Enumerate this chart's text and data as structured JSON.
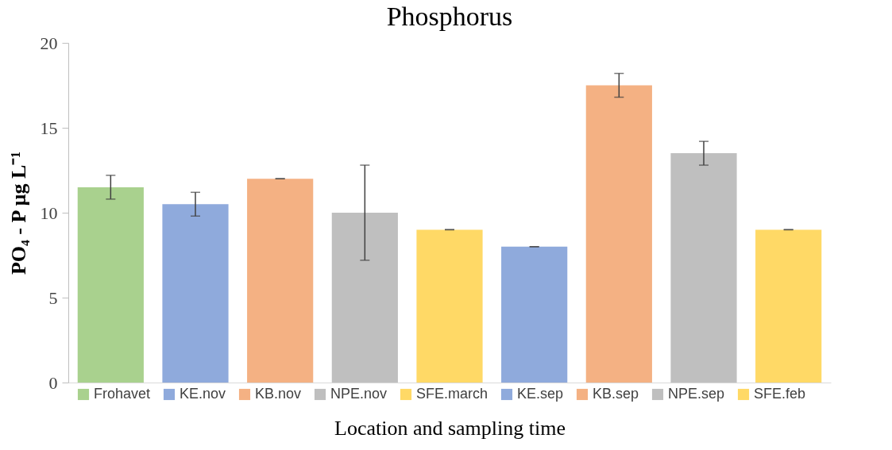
{
  "chart_data": {
    "type": "bar",
    "title": "Phosphorus",
    "xlabel": "Location and sampling time",
    "ylabel": "PO₄ - P µg L⁻¹",
    "categories": [
      null,
      null,
      null,
      null,
      null,
      null,
      null,
      null,
      null
    ],
    "stacked": true,
    "series": [
      {
        "name": "Frohavet",
        "color": "#a9d18e",
        "values": [
          11.5,
          null,
          null,
          null,
          null,
          null,
          null,
          null,
          null
        ],
        "errors": [
          0.7,
          null,
          null,
          null,
          null,
          null,
          null,
          null,
          null
        ]
      },
      {
        "name": "KE.nov",
        "color": "#8faadc",
        "values": [
          null,
          10.5,
          null,
          null,
          null,
          null,
          null,
          null,
          null
        ],
        "errors": [
          null,
          0.7,
          null,
          null,
          null,
          null,
          null,
          null,
          null
        ]
      },
      {
        "name": "KB.nov",
        "color": "#f4b183",
        "values": [
          null,
          null,
          12,
          null,
          null,
          null,
          null,
          null,
          null
        ],
        "errors": [
          null,
          null,
          0,
          null,
          null,
          null,
          null,
          null,
          null
        ]
      },
      {
        "name": "NPE.nov",
        "color": "#bfbfbf",
        "values": [
          null,
          null,
          null,
          10,
          null,
          null,
          null,
          null,
          null
        ],
        "errors": [
          null,
          null,
          null,
          2.8,
          null,
          null,
          null,
          null,
          null
        ]
      },
      {
        "name": "SFE.march",
        "color": "#ffd966",
        "values": [
          null,
          null,
          null,
          null,
          9,
          null,
          null,
          null,
          null
        ],
        "errors": [
          null,
          null,
          null,
          null,
          0,
          null,
          null,
          null,
          null
        ]
      },
      {
        "name": "KE.sep",
        "color": "#8faadc",
        "values": [
          null,
          null,
          null,
          null,
          null,
          8,
          null,
          null,
          null
        ],
        "errors": [
          null,
          null,
          null,
          null,
          null,
          0,
          null,
          null,
          null
        ]
      },
      {
        "name": "KB.sep",
        "color": "#f4b183",
        "values": [
          null,
          null,
          null,
          null,
          null,
          null,
          17.5,
          null,
          null
        ],
        "errors": [
          null,
          null,
          null,
          null,
          null,
          null,
          0.7,
          null,
          null
        ]
      },
      {
        "name": "NPE.sep",
        "color": "#bfbfbf",
        "values": [
          null,
          null,
          null,
          null,
          null,
          null,
          null,
          13.5,
          null
        ],
        "errors": [
          null,
          null,
          null,
          null,
          null,
          null,
          null,
          0.7,
          null
        ]
      },
      {
        "name": "SFE.feb",
        "color": "#ffd966",
        "values": [
          null,
          null,
          null,
          null,
          null,
          null,
          null,
          null,
          9
        ],
        "errors": [
          null,
          null,
          null,
          null,
          null,
          null,
          null,
          null,
          0
        ]
      }
    ],
    "ylim": [
      0,
      20
    ],
    "yticks": [
      0,
      5,
      10,
      15,
      20
    ],
    "grid": false,
    "legend": "bottom",
    "tick_labels": "y"
  }
}
